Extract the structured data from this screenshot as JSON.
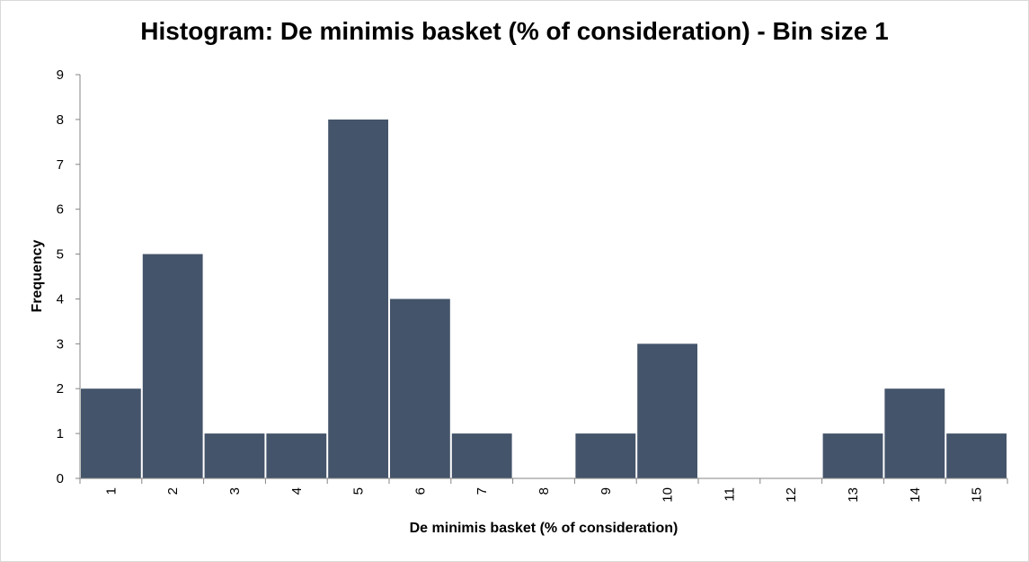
{
  "chart_data": {
    "type": "bar",
    "title": "Histogram: De minimis basket (% of consideration) - Bin size 1",
    "xlabel": "De minimis basket (% of consideration)",
    "ylabel": "Frequency",
    "categories": [
      "1",
      "2",
      "3",
      "4",
      "5",
      "6",
      "7",
      "8",
      "9",
      "10",
      "11",
      "12",
      "13",
      "14",
      "15"
    ],
    "values": [
      2,
      5,
      1,
      1,
      8,
      4,
      1,
      0,
      1,
      3,
      0,
      0,
      1,
      2,
      1
    ],
    "ylim": [
      0,
      9
    ],
    "yticks": [
      "0",
      "1",
      "2",
      "3",
      "4",
      "5",
      "6",
      "7",
      "8",
      "9"
    ],
    "grid": false,
    "legend": "none",
    "bar_color": "#44546a"
  }
}
